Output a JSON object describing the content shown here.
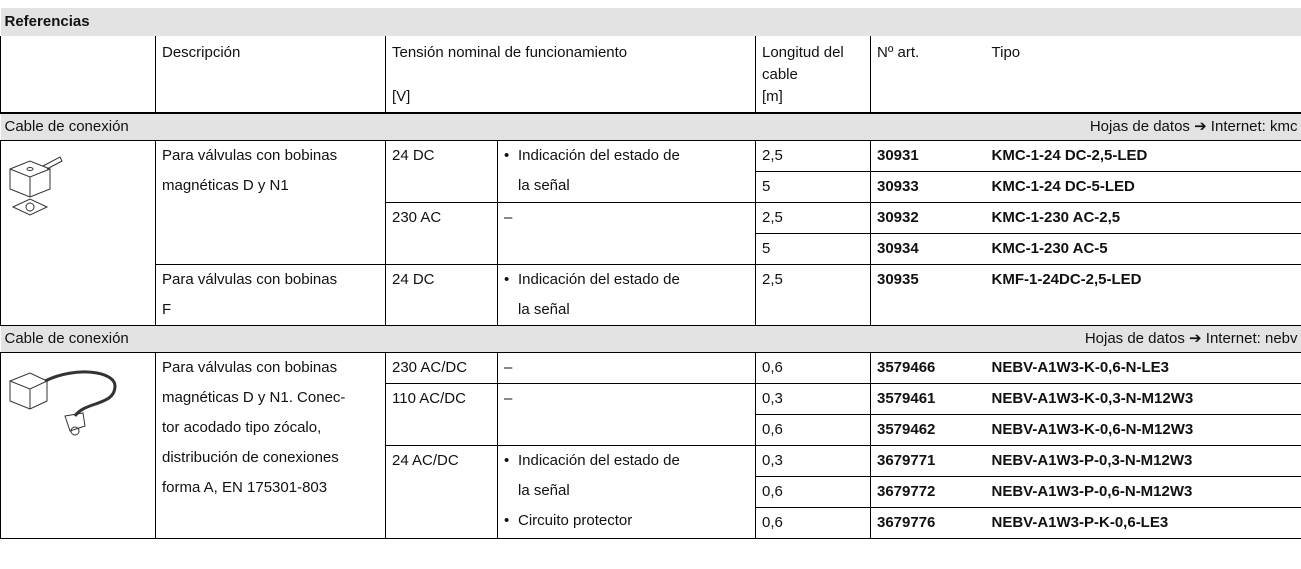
{
  "title": "Referencias",
  "header": {
    "description": "Descripción",
    "voltage": "Tensión nominal de funcionamiento",
    "voltage_unit": "[V]",
    "cable_length": [
      "Longitud del",
      "cable"
    ],
    "cable_unit": "[m]",
    "part_no": "Nº art.",
    "type": "Tipo"
  },
  "sections": [
    {
      "label": "Cable de conexión",
      "datasheet": "Hojas de datos ➔ Internet: kmc",
      "groups": [
        {
          "description": [
            "Para válvulas con bobinas",
            "magnéticas D y N1"
          ],
          "variants": [
            {
              "voltage": "24 DC",
              "features": [
                [
                  "Indicación del estado de",
                  "la señal"
                ]
              ],
              "items": [
                {
                  "length": "2,5",
                  "part_no": "30931",
                  "type": "KMC-1-24 DC-2,5-LED"
                },
                {
                  "length": "5",
                  "part_no": "30933",
                  "type": "KMC-1-24 DC-5-LED"
                }
              ]
            },
            {
              "voltage": "230 AC",
              "features": "–",
              "items": [
                {
                  "length": "2,5",
                  "part_no": "30932",
                  "type": "KMC-1-230 AC-2,5"
                },
                {
                  "length": "5",
                  "part_no": "30934",
                  "type": "KMC-1-230 AC-5"
                }
              ]
            }
          ]
        },
        {
          "description": [
            "Para válvulas con bobinas",
            "F"
          ],
          "variants": [
            {
              "voltage": "24 DC",
              "features": [
                [
                  "Indicación del estado de",
                  "la señal"
                ]
              ],
              "items": [
                {
                  "length": "2,5",
                  "part_no": "30935",
                  "type": "KMF-1-24DC-2,5-LED"
                }
              ]
            }
          ]
        }
      ]
    },
    {
      "label": "Cable de conexión",
      "datasheet": "Hojas de datos ➔ Internet: nebv",
      "groups": [
        {
          "description": [
            "Para válvulas con bobinas",
            "magnéticas D y N1. Conec-",
            "tor acodado tipo zócalo,",
            "distribución de conexiones",
            "forma A, EN 175301-803"
          ],
          "variants": [
            {
              "voltage": "230 AC/DC",
              "features": "–",
              "items": [
                {
                  "length": "0,6",
                  "part_no": "3579466",
                  "type": "NEBV-A1W3-K-0,6-N-LE3"
                }
              ]
            },
            {
              "voltage": "110 AC/DC",
              "features": "–",
              "items": [
                {
                  "length": "0,3",
                  "part_no": "3579461",
                  "type": "NEBV-A1W3-K-0,3-N-M12W3"
                },
                {
                  "length": "0,6",
                  "part_no": "3579462",
                  "type": "NEBV-A1W3-K-0,6-N-M12W3"
                }
              ]
            },
            {
              "voltage": "24 AC/DC",
              "features": [
                [
                  "Indicación del estado de",
                  "la señal"
                ],
                [
                  "Circuito protector"
                ]
              ],
              "items": [
                {
                  "length": "0,3",
                  "part_no": "3679771",
                  "type": "NEBV-A1W3-P-0,3-N-M12W3"
                },
                {
                  "length": "0,6",
                  "part_no": "3679772",
                  "type": "NEBV-A1W3-P-0,6-N-M12W3"
                },
                {
                  "length": "0,6",
                  "part_no": "3679776",
                  "type": "NEBV-A1W3-P-K-0,6-LE3"
                }
              ]
            }
          ]
        }
      ]
    }
  ]
}
